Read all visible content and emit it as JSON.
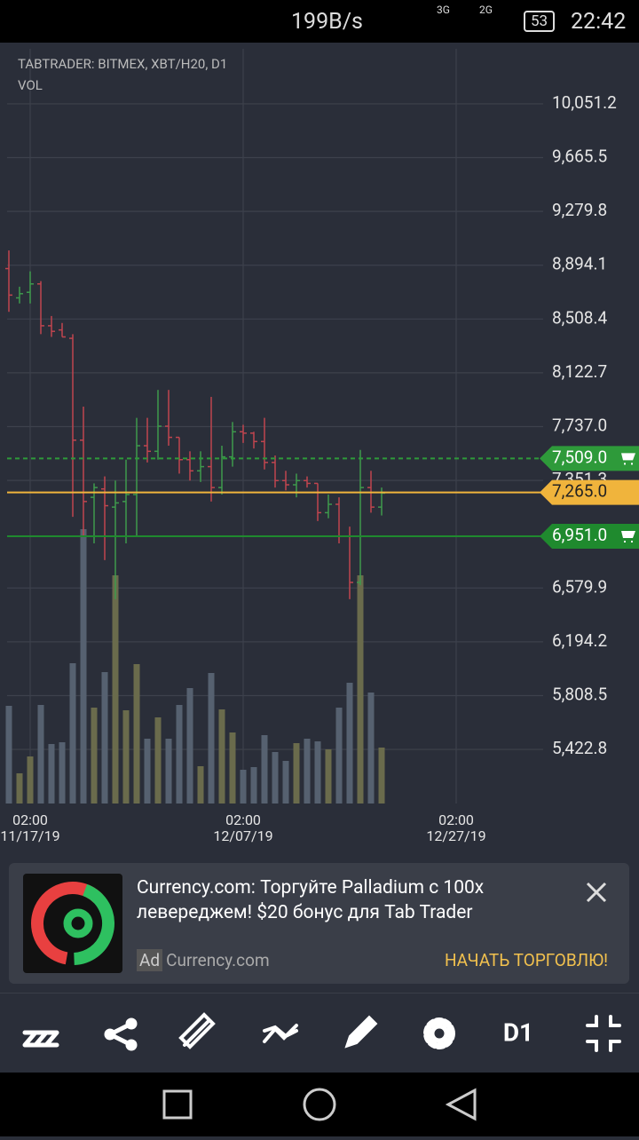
{
  "status_bar": {
    "speed": "199B/s",
    "net1": "3G",
    "net2": "2G",
    "battery": "53",
    "time": "22:42"
  },
  "chart_data": {
    "type": "candlestick",
    "title": "TABTRADER: BITMEX, XBT/H20, D1",
    "subtitle": "VOL",
    "x": [
      "11/15/19",
      "11/16/19",
      "11/17/19",
      "11/18/19",
      "11/19/19",
      "11/20/19",
      "11/21/19",
      "11/22/19",
      "11/23/19",
      "11/24/19",
      "11/25/19",
      "11/26/19",
      "11/27/19",
      "11/28/19",
      "11/29/19",
      "11/30/19",
      "12/01/19",
      "12/02/19",
      "12/03/19",
      "12/04/19",
      "12/05/19",
      "12/06/19",
      "12/07/19",
      "12/08/19",
      "12/09/19",
      "12/10/19",
      "12/11/19",
      "12/12/19",
      "12/13/19",
      "12/14/19",
      "12/15/19",
      "12/16/19",
      "12/17/19",
      "12/18/19",
      "12/19/19",
      "12/20/19"
    ],
    "open": [
      8870,
      8660,
      8700,
      8760,
      8460,
      8430,
      8370,
      7640,
      7230,
      7290,
      7160,
      7200,
      7250,
      7600,
      7560,
      7740,
      7660,
      7500,
      7420,
      7450,
      7300,
      7520,
      7700,
      7690,
      7630,
      7480,
      7350,
      7320,
      7350,
      7330,
      7120,
      7180,
      6950,
      6620,
      7300,
      7160
    ],
    "high": [
      9000,
      8740,
      8850,
      8780,
      8530,
      8480,
      8400,
      7880,
      7330,
      7380,
      7350,
      7500,
      7800,
      7800,
      8000,
      8000,
      7660,
      7560,
      7560,
      7950,
      7600,
      7770,
      7750,
      7700,
      7800,
      7530,
      7420,
      7400,
      7380,
      7330,
      7250,
      7230,
      7020,
      7570,
      7420,
      7300
    ],
    "low": [
      8560,
      8620,
      8620,
      8400,
      8380,
      8380,
      7090,
      6950,
      6900,
      6780,
      6500,
      6900,
      6950,
      7480,
      7500,
      7600,
      7400,
      7350,
      7340,
      7200,
      7250,
      7450,
      7620,
      7580,
      7430,
      7300,
      7280,
      7230,
      7300,
      7060,
      7080,
      6900,
      6500,
      6600,
      7120,
      7100
    ],
    "close": [
      8680,
      8690,
      8760,
      8460,
      8420,
      8380,
      7640,
      7200,
      7300,
      7170,
      7190,
      7250,
      7600,
      7560,
      7740,
      7660,
      7500,
      7420,
      7450,
      7300,
      7520,
      7700,
      7690,
      7630,
      7480,
      7350,
      7320,
      7350,
      7330,
      7120,
      7180,
      6950,
      6620,
      7300,
      7160,
      7260
    ],
    "volume": [
      110,
      34,
      53,
      111,
      67,
      69,
      158,
      309,
      108,
      148,
      257,
      105,
      157,
      73,
      97,
      73,
      111,
      130,
      42,
      147,
      106,
      80,
      38,
      41,
      77,
      58,
      48,
      68,
      73,
      70,
      61,
      108,
      136,
      257,
      125,
      63
    ],
    "vlim": [
      0,
      320
    ],
    "up_color": "#3e9a4c",
    "down_color": "#c0454f",
    "up_volume_color": "#6a6b4c",
    "down_volume_color": "#566170",
    "ylim": [
      4653,
      10490
    ],
    "yticks": [
      {
        "value": 10051.2,
        "label": "10,051.2"
      },
      {
        "value": 9665.5,
        "label": "9,665.5"
      },
      {
        "value": 9279.8,
        "label": "9,279.8"
      },
      {
        "value": 8894.1,
        "label": "8,894.1"
      },
      {
        "value": 8508.4,
        "label": "8,508.4"
      },
      {
        "value": 8122.7,
        "label": "8,122.7"
      },
      {
        "value": 7737,
        "label": "7,737.0"
      },
      {
        "value": 7351.3,
        "label": "7,351.3"
      },
      {
        "value": 6579.9,
        "label": "6,579.9"
      },
      {
        "value": 6194.2,
        "label": "6,194.2"
      },
      {
        "value": 5808.5,
        "label": "5,808.5"
      },
      {
        "value": 5422.8,
        "label": "5,422.8"
      }
    ],
    "xticks": [
      {
        "time": "02:00",
        "date": "11/17/19"
      },
      {
        "time": "02:00",
        "date": "12/07/19"
      },
      {
        "time": "02:00",
        "date": "12/27/19"
      }
    ],
    "grid": true,
    "price_lines": [
      {
        "value": 7509,
        "label": "7,509.0",
        "color": "#2e9a3a",
        "style": "dashed",
        "icon": true
      },
      {
        "value": 7265,
        "label": "7,265.0",
        "color": "#f0b43c",
        "style": "solid",
        "icon": false
      },
      {
        "value": 6951,
        "label": "6,951.0",
        "color": "#1f8a2e",
        "style": "solid",
        "icon": true
      }
    ]
  },
  "ad": {
    "message": "Currency.com: Торгуйте Palladium с 100x левереджем! $20 бонус для Tab Trader",
    "badge": "Ad",
    "domain": "Currency.com",
    "cta": "НАЧАТЬ ТОРГОВЛЮ!"
  },
  "toolbar": {
    "timeframe": "D1"
  }
}
